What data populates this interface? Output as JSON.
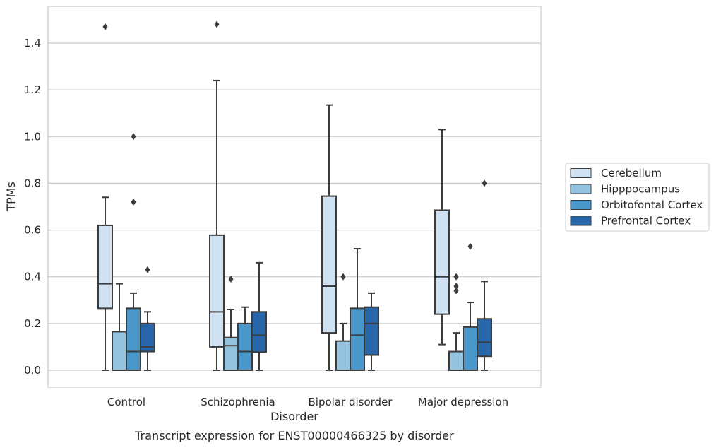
{
  "chart_data": {
    "type": "box",
    "title": "",
    "caption": "Transcript expression for ENST00000466325 by disorder",
    "xlabel": "Disorder",
    "ylabel": "TPMs",
    "ylim": [
      -0.07,
      1.555
    ],
    "yticks": [
      "0.0",
      "0.2",
      "0.4",
      "0.6",
      "0.8",
      "1.0",
      "1.2",
      "1.4"
    ],
    "grid": "horizontal",
    "legend_position": "right",
    "categories": [
      "Control",
      "Schizophrenia",
      "Bipolar disorder",
      "Major depression"
    ],
    "series": [
      {
        "name": "Cerebellum",
        "color": "#d0e1f2",
        "boxes": [
          {
            "whislo": 0.0,
            "q1": 0.265,
            "med": 0.37,
            "q3": 0.62,
            "whishi": 0.74,
            "fliers": [
              1.47
            ]
          },
          {
            "whislo": 0.0,
            "q1": 0.1,
            "med": 0.25,
            "q3": 0.578,
            "whishi": 1.24,
            "fliers": [
              1.48
            ]
          },
          {
            "whislo": 0.0,
            "q1": 0.16,
            "med": 0.36,
            "q3": 0.745,
            "whishi": 1.135,
            "fliers": []
          },
          {
            "whislo": 0.11,
            "q1": 0.24,
            "med": 0.4,
            "q3": 0.685,
            "whishi": 1.03,
            "fliers": []
          }
        ]
      },
      {
        "name": "Hipppocampus",
        "color": "#94c4df",
        "boxes": [
          {
            "whislo": 0.0,
            "q1": 0.0,
            "med": 0.0,
            "q3": 0.165,
            "whishi": 0.37,
            "fliers": []
          },
          {
            "whislo": 0.0,
            "q1": 0.0,
            "med": 0.105,
            "q3": 0.14,
            "whishi": 0.26,
            "fliers": [
              0.39
            ]
          },
          {
            "whislo": 0.0,
            "q1": 0.0,
            "med": 0.0,
            "q3": 0.125,
            "whishi": 0.2,
            "fliers": [
              0.4
            ]
          },
          {
            "whislo": 0.0,
            "q1": 0.0,
            "med": 0.0,
            "q3": 0.08,
            "whishi": 0.16,
            "fliers": [
              0.34,
              0.36,
              0.4
            ]
          }
        ]
      },
      {
        "name": "Orbitofontal Cortex",
        "color": "#4a98c9",
        "boxes": [
          {
            "whislo": 0.0,
            "q1": 0.0,
            "med": 0.08,
            "q3": 0.265,
            "whishi": 0.33,
            "fliers": [
              0.72,
              1.0
            ]
          },
          {
            "whislo": 0.0,
            "q1": 0.0,
            "med": 0.08,
            "q3": 0.2,
            "whishi": 0.27,
            "fliers": []
          },
          {
            "whislo": 0.0,
            "q1": 0.0,
            "med": 0.15,
            "q3": 0.265,
            "whishi": 0.52,
            "fliers": []
          },
          {
            "whislo": 0.0,
            "q1": 0.0,
            "med": 0.0,
            "q3": 0.185,
            "whishi": 0.29,
            "fliers": [
              0.53
            ]
          }
        ]
      },
      {
        "name": "Prefrontal Cortex",
        "color": "#2666a9",
        "boxes": [
          {
            "whislo": 0.0,
            "q1": 0.08,
            "med": 0.1,
            "q3": 0.2,
            "whishi": 0.25,
            "fliers": [
              0.43
            ]
          },
          {
            "whislo": 0.0,
            "q1": 0.078,
            "med": 0.15,
            "q3": 0.25,
            "whishi": 0.46,
            "fliers": []
          },
          {
            "whislo": 0.0,
            "q1": 0.065,
            "med": 0.2,
            "q3": 0.27,
            "whishi": 0.33,
            "fliers": []
          },
          {
            "whislo": 0.0,
            "q1": 0.06,
            "med": 0.12,
            "q3": 0.22,
            "whishi": 0.38,
            "fliers": [
              0.8
            ]
          }
        ]
      }
    ]
  }
}
